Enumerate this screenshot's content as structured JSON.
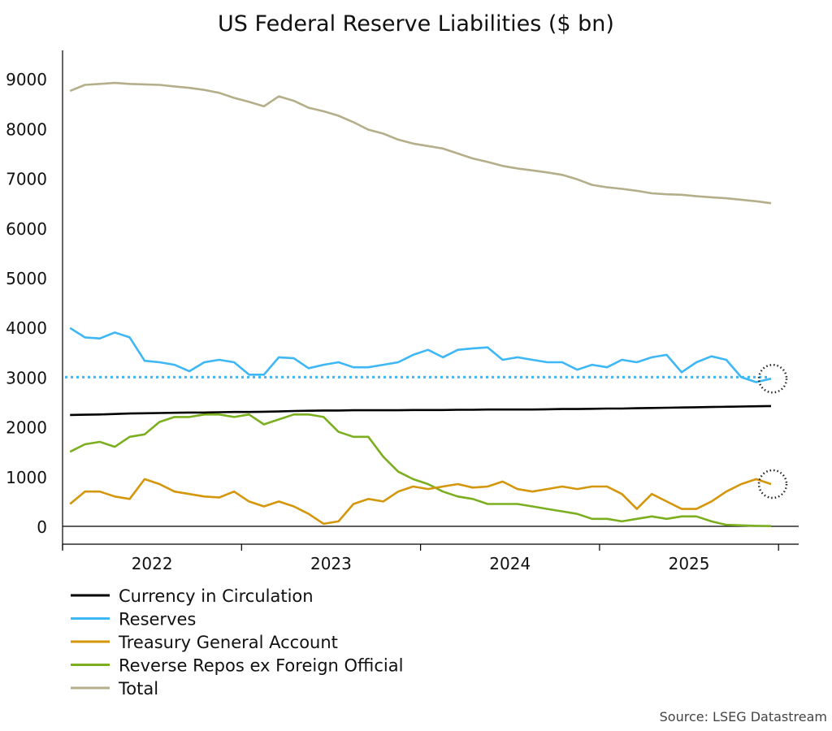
{
  "chart_data": {
    "type": "line",
    "title": "US Federal Reserve Liabilities ($ bn)",
    "source": "Source: LSEG Datastream",
    "xlabel": "",
    "ylabel": "",
    "x_tick_labels": [
      "2022",
      "2023",
      "2024",
      "2025"
    ],
    "xlim": [
      "2022-01-01",
      "2026-01-01"
    ],
    "ylim": [
      0,
      9500
    ],
    "y_ticks": [
      0,
      1000,
      2000,
      3000,
      4000,
      5000,
      6000,
      7000,
      8000,
      9000
    ],
    "grid": false,
    "legend_placement": "bottom-left",
    "x": [
      "2022-01",
      "2022-02",
      "2022-03",
      "2022-04",
      "2022-05",
      "2022-06",
      "2022-07",
      "2022-08",
      "2022-09",
      "2022-10",
      "2022-11",
      "2022-12",
      "2023-01",
      "2023-02",
      "2023-03",
      "2023-04",
      "2023-05",
      "2023-06",
      "2023-07",
      "2023-08",
      "2023-09",
      "2023-10",
      "2023-11",
      "2023-12",
      "2024-01",
      "2024-02",
      "2024-03",
      "2024-04",
      "2024-05",
      "2024-06",
      "2024-07",
      "2024-08",
      "2024-09",
      "2024-10",
      "2024-11",
      "2024-12",
      "2025-01",
      "2025-02",
      "2025-03",
      "2025-04",
      "2025-05",
      "2025-06",
      "2025-07",
      "2025-08",
      "2025-09",
      "2025-10",
      "2025-11",
      "2025-12"
    ],
    "series": [
      {
        "name": "Currency in Circulation",
        "color": "#000000",
        "values": [
          2240,
          2245,
          2250,
          2260,
          2270,
          2275,
          2280,
          2285,
          2290,
          2290,
          2295,
          2300,
          2300,
          2305,
          2310,
          2320,
          2325,
          2330,
          2330,
          2335,
          2335,
          2335,
          2335,
          2340,
          2340,
          2340,
          2345,
          2345,
          2350,
          2350,
          2350,
          2350,
          2355,
          2360,
          2360,
          2365,
          2370,
          2370,
          2375,
          2380,
          2385,
          2390,
          2395,
          2400,
          2405,
          2410,
          2415,
          2420
        ]
      },
      {
        "name": "Reserves",
        "color": "#3DB7F5",
        "values": [
          3990,
          3800,
          3780,
          3900,
          3800,
          3330,
          3300,
          3250,
          3120,
          3300,
          3350,
          3300,
          3050,
          3050,
          3400,
          3380,
          3180,
          3250,
          3300,
          3200,
          3200,
          3250,
          3300,
          3450,
          3550,
          3400,
          3550,
          3580,
          3600,
          3350,
          3400,
          3350,
          3300,
          3300,
          3150,
          3250,
          3200,
          3350,
          3300,
          3400,
          3450,
          3100,
          3300,
          3420,
          3350,
          3000,
          2900,
          2970
        ]
      },
      {
        "name": "Treasury General Account",
        "color": "#D4960A",
        "values": [
          450,
          700,
          700,
          600,
          550,
          950,
          850,
          700,
          650,
          600,
          580,
          700,
          500,
          400,
          500,
          400,
          250,
          50,
          100,
          450,
          550,
          500,
          700,
          800,
          750,
          800,
          850,
          780,
          800,
          900,
          750,
          700,
          750,
          800,
          750,
          800,
          800,
          650,
          350,
          650,
          500,
          350,
          350,
          500,
          700,
          850,
          950,
          850
        ]
      },
      {
        "name": "Reverse Repos ex Foreign Official",
        "color": "#7BAF1F",
        "values": [
          1500,
          1650,
          1700,
          1600,
          1800,
          1850,
          2100,
          2200,
          2200,
          2250,
          2250,
          2200,
          2250,
          2050,
          2150,
          2250,
          2250,
          2200,
          1900,
          1800,
          1800,
          1400,
          1100,
          950,
          850,
          700,
          600,
          550,
          450,
          450,
          450,
          400,
          350,
          300,
          250,
          150,
          150,
          100,
          150,
          200,
          150,
          200,
          200,
          100,
          30,
          20,
          10,
          5
        ]
      },
      {
        "name": "Total",
        "color": "#B5AE8A",
        "values": [
          8760,
          8880,
          8900,
          8920,
          8900,
          8890,
          8880,
          8850,
          8820,
          8780,
          8720,
          8620,
          8540,
          8450,
          8650,
          8560,
          8420,
          8350,
          8260,
          8130,
          7980,
          7900,
          7780,
          7700,
          7650,
          7600,
          7500,
          7400,
          7330,
          7250,
          7200,
          7160,
          7120,
          7070,
          6980,
          6870,
          6820,
          6790,
          6750,
          6700,
          6680,
          6670,
          6640,
          6620,
          6600,
          6570,
          6540,
          6500
        ]
      }
    ],
    "reference_lines": [
      {
        "value": 3000,
        "color": "#3DB7F5",
        "style": "dotted"
      }
    ],
    "annotations": [
      {
        "type": "dotted-circle",
        "target": "Reserves",
        "x": "2025-12"
      },
      {
        "type": "dotted-circle",
        "target": "Treasury General Account",
        "x": "2025-12"
      }
    ]
  }
}
